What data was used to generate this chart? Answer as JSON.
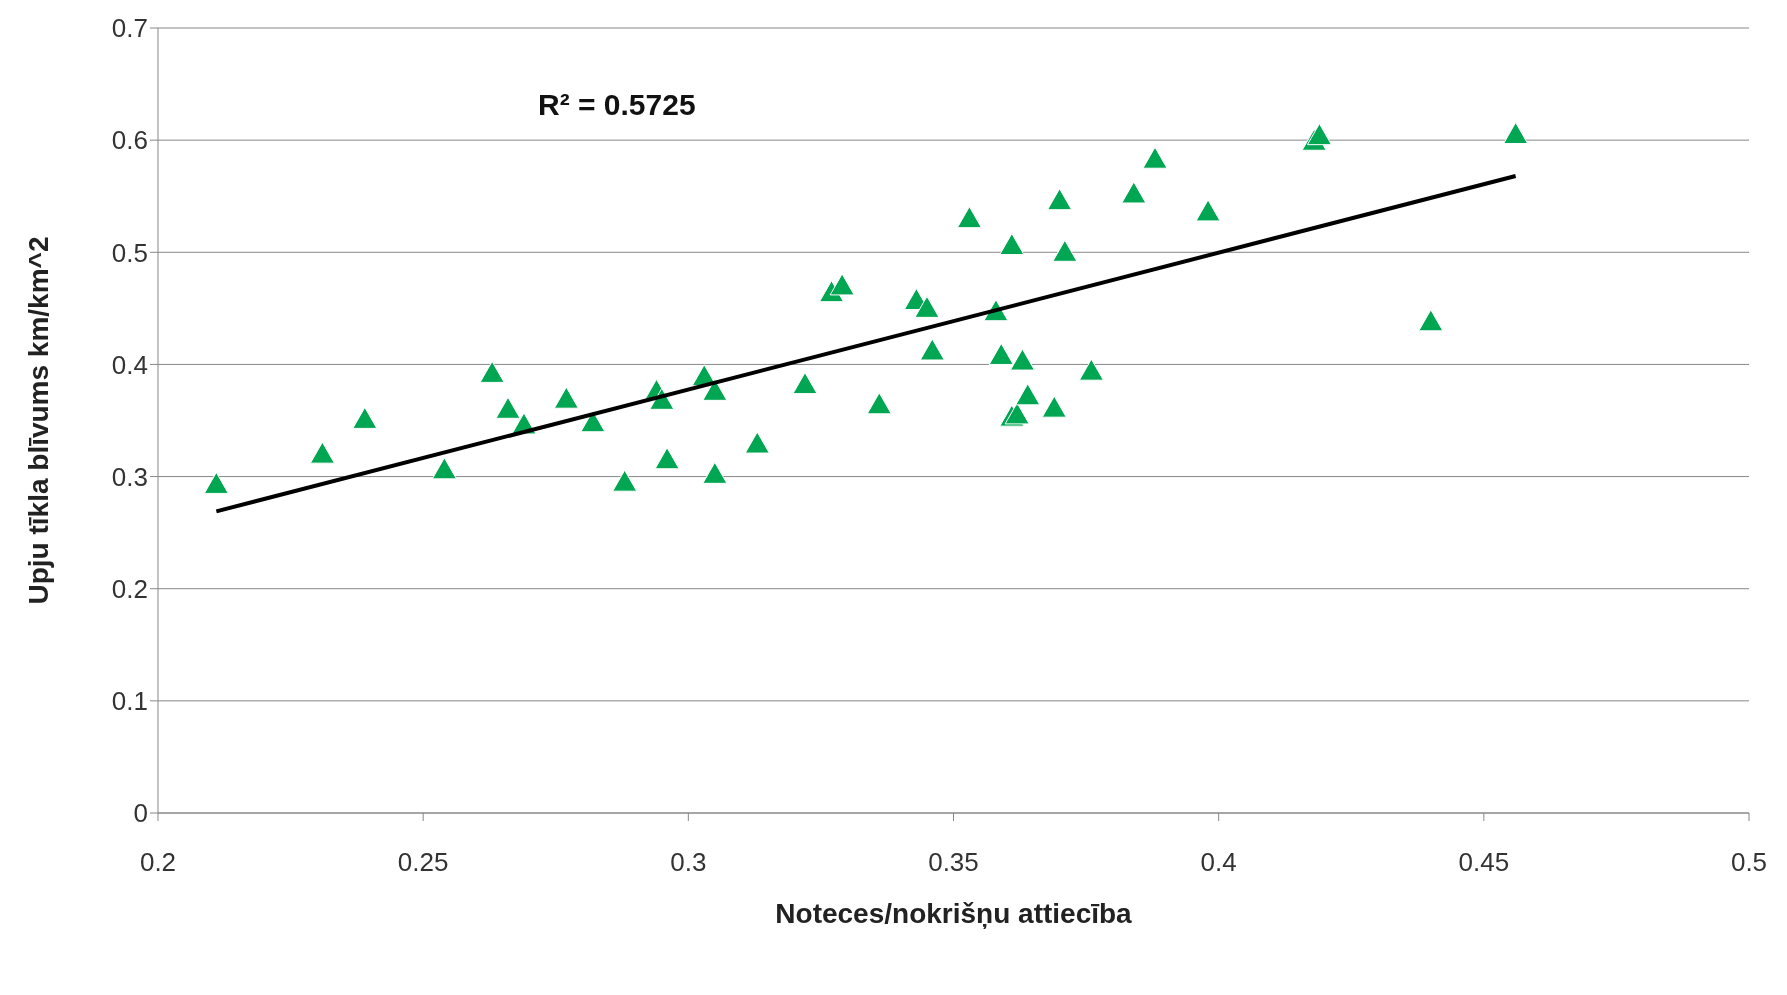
{
  "chart_data": {
    "type": "scatter",
    "xlabel": "Noteces/nokrišņu attiecība",
    "ylabel": "Upju tīkla blīvums km/km^2",
    "annotations": [
      "R² = 0.5725"
    ],
    "xlim": [
      0.2,
      0.5
    ],
    "xticks": [
      0.2,
      0.25,
      0.3,
      0.35,
      0.4,
      0.45,
      0.5
    ],
    "ylim": [
      0,
      0.7
    ],
    "yticks": [
      0,
      0.1,
      0.2,
      0.3,
      0.4,
      0.5,
      0.6,
      0.7
    ],
    "grid": "y",
    "series": [
      {
        "color": "#00a651",
        "marker": "triangle",
        "x": [
          0.211,
          0.231,
          0.239,
          0.254,
          0.263,
          0.266,
          0.269,
          0.277,
          0.282,
          0.288,
          0.294,
          0.295,
          0.296,
          0.303,
          0.305,
          0.305,
          0.313,
          0.322,
          0.327,
          0.329,
          0.336,
          0.343,
          0.345,
          0.346,
          0.353,
          0.358,
          0.359,
          0.361,
          0.361,
          0.363,
          0.362,
          0.364,
          0.369,
          0.37,
          0.371,
          0.376,
          0.384,
          0.388,
          0.398,
          0.418,
          0.419,
          0.44,
          0.456
        ],
        "values": [
          0.293,
          0.32,
          0.351,
          0.306,
          0.392,
          0.36,
          0.346,
          0.369,
          0.348,
          0.295,
          0.376,
          0.368,
          0.315,
          0.389,
          0.376,
          0.302,
          0.329,
          0.382,
          0.464,
          0.47,
          0.364,
          0.457,
          0.45,
          0.412,
          0.53,
          0.447,
          0.408,
          0.506,
          0.353,
          0.403,
          0.355,
          0.372,
          0.361,
          0.546,
          0.5,
          0.394,
          0.552,
          0.583,
          0.536,
          0.599,
          0.604,
          0.438,
          0.605
        ]
      },
      {
        "type": "line",
        "color": "#000000",
        "marker": "none",
        "line_style": "solid",
        "x": [
          0.211,
          0.456
        ],
        "values": [
          0.269,
          0.568
        ]
      }
    ]
  }
}
